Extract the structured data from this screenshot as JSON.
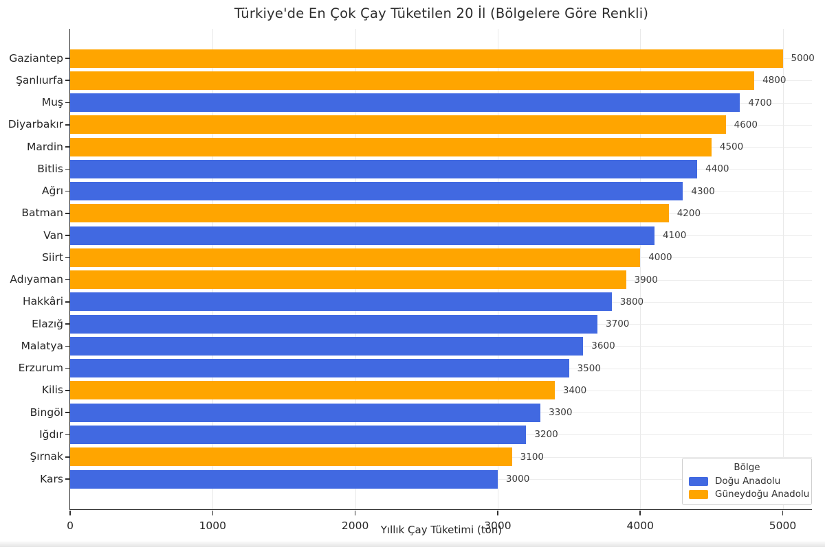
{
  "chart_data": {
    "type": "bar",
    "orientation": "horizontal",
    "title": "Türkiye'de En Çok Çay Tüketilen 20 İl (Bölgelere Göre Renkli)",
    "xlabel": "Yıllık Çay Tüketimi (ton)",
    "ylabel": "",
    "xlim": [
      0,
      5200
    ],
    "xticks": [
      0,
      1000,
      2000,
      3000,
      4000,
      5000
    ],
    "xtick_labels": [
      "0",
      "1000",
      "2000",
      "3000",
      "4000",
      "5000"
    ],
    "grid": true,
    "value_labels_shown": true,
    "categories": [
      "Gaziantep",
      "Şanlıurfa",
      "Muş",
      "Diyarbakır",
      "Mardin",
      "Bitlis",
      "Ağrı",
      "Batman",
      "Van",
      "Siirt",
      "Adıyaman",
      "Hakkâri",
      "Elazığ",
      "Malatya",
      "Erzurum",
      "Kilis",
      "Bingöl",
      "Iğdır",
      "Şırnak",
      "Kars"
    ],
    "values": [
      5000,
      4800,
      4700,
      4600,
      4500,
      4400,
      4300,
      4200,
      4100,
      4000,
      3900,
      3800,
      3700,
      3600,
      3500,
      3400,
      3300,
      3200,
      3100,
      3000
    ],
    "regions": [
      "Güneydoğu Anadolu",
      "Güneydoğu Anadolu",
      "Doğu Anadolu",
      "Güneydoğu Anadolu",
      "Güneydoğu Anadolu",
      "Doğu Anadolu",
      "Doğu Anadolu",
      "Güneydoğu Anadolu",
      "Doğu Anadolu",
      "Güneydoğu Anadolu",
      "Güneydoğu Anadolu",
      "Doğu Anadolu",
      "Doğu Anadolu",
      "Doğu Anadolu",
      "Doğu Anadolu",
      "Güneydoğu Anadolu",
      "Doğu Anadolu",
      "Doğu Anadolu",
      "Güneydoğu Anadolu",
      "Doğu Anadolu"
    ],
    "region_colors": {
      "Doğu Anadolu": "#4169E1",
      "Güneydoğu Anadolu": "#FFA500"
    },
    "legend": {
      "title": "Bölge",
      "position": "lower right",
      "entries": [
        {
          "label": "Doğu Anadolu",
          "color": "#4169E1"
        },
        {
          "label": "Güneydoğu Anadolu",
          "color": "#FFA500"
        }
      ]
    }
  }
}
